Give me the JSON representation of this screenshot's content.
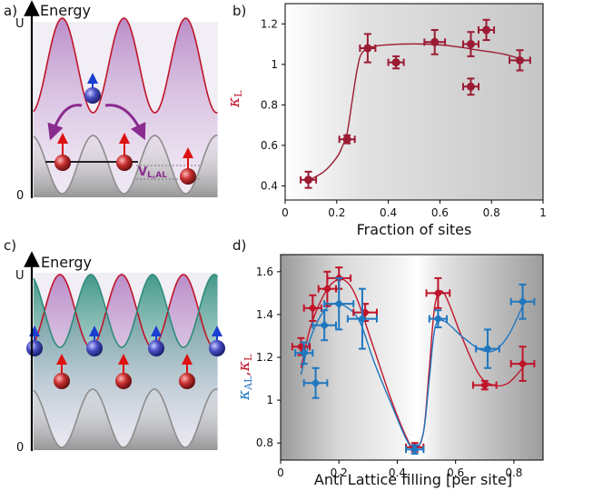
{
  "panels": {
    "a": {
      "tag": "a)",
      "title": "Energy",
      "u_label": "U",
      "zero_label": "0",
      "v_label": "V",
      "v_sub": "L,AL"
    },
    "b": {
      "tag": "b)"
    },
    "c": {
      "tag": "c)",
      "title": "Energy",
      "u_label": "U",
      "zero_label": "0"
    },
    "d": {
      "tag": "d)"
    }
  },
  "colors": {
    "red": "#c0142a",
    "blue": "#1f77c0",
    "darkred": "#9b1b33",
    "purple": "#8a2b8f",
    "teal": "#2e8c7a",
    "gray": "#9a9a9a"
  },
  "chart_data": [
    {
      "id": "b",
      "type": "scatter",
      "title": "",
      "xlabel": "Fraction of sites",
      "ylabel": "κ",
      "ylabel_sub": "L",
      "xlim": [
        0,
        1
      ],
      "ylim": [
        0.33,
        1.3
      ],
      "xticks": [
        "0",
        "0.2",
        "0.4",
        "0.6",
        "0.8",
        "1"
      ],
      "yticks": [
        "0.4",
        "0.6",
        "0.8",
        "1",
        "1.2"
      ],
      "series": [
        {
          "name": "κL",
          "color": "#9b1b33",
          "points": [
            {
              "x": 0.09,
              "y": 0.43,
              "xerr": 0.03,
              "yerr": 0.04
            },
            {
              "x": 0.24,
              "y": 0.63,
              "xerr": 0.03,
              "yerr": 0.02
            },
            {
              "x": 0.32,
              "y": 1.08,
              "xerr": 0.03,
              "yerr": 0.07
            },
            {
              "x": 0.43,
              "y": 1.01,
              "xerr": 0.03,
              "yerr": 0.03
            },
            {
              "x": 0.58,
              "y": 1.11,
              "xerr": 0.04,
              "yerr": 0.06
            },
            {
              "x": 0.72,
              "y": 1.1,
              "xerr": 0.03,
              "yerr": 0.06
            },
            {
              "x": 0.78,
              "y": 1.17,
              "xerr": 0.03,
              "yerr": 0.05
            },
            {
              "x": 0.72,
              "y": 0.89,
              "xerr": 0.03,
              "yerr": 0.04
            },
            {
              "x": 0.91,
              "y": 1.02,
              "xerr": 0.04,
              "yerr": 0.05
            }
          ],
          "fit": [
            [
              0.08,
              0.42
            ],
            [
              0.15,
              0.47
            ],
            [
              0.2,
              0.54
            ],
            [
              0.22,
              0.59
            ],
            [
              0.24,
              0.66
            ],
            [
              0.26,
              0.82
            ],
            [
              0.28,
              0.98
            ],
            [
              0.3,
              1.06
            ],
            [
              0.35,
              1.09
            ],
            [
              0.45,
              1.1
            ],
            [
              0.55,
              1.1
            ],
            [
              0.65,
              1.09
            ],
            [
              0.75,
              1.07
            ],
            [
              0.85,
              1.05
            ],
            [
              0.93,
              1.02
            ]
          ]
        }
      ]
    },
    {
      "id": "d",
      "type": "scatter",
      "title": "",
      "xlabel": "Anti Lattice filling [per site]",
      "ylabel": "κ",
      "ylabel_sub": "AL",
      "ylabel2": "κ",
      "ylabel2_sub": "L",
      "xlim": [
        0,
        0.9
      ],
      "ylim": [
        0.72,
        1.68
      ],
      "xticks": [
        "0",
        "0.2",
        "0.4",
        "0.6",
        "0.8"
      ],
      "yticks": [
        "0.8",
        "1",
        "1.2",
        "1.4",
        "1.6"
      ],
      "series": [
        {
          "name": "κL",
          "color": "#c0142a",
          "points": [
            {
              "x": 0.07,
              "y": 1.25,
              "xerr": 0.03,
              "yerr": 0.04
            },
            {
              "x": 0.11,
              "y": 1.43,
              "xerr": 0.03,
              "yerr": 0.06
            },
            {
              "x": 0.16,
              "y": 1.52,
              "xerr": 0.03,
              "yerr": 0.08
            },
            {
              "x": 0.2,
              "y": 1.57,
              "xerr": 0.04,
              "yerr": 0.05
            },
            {
              "x": 0.29,
              "y": 1.41,
              "xerr": 0.04,
              "yerr": 0.04
            },
            {
              "x": 0.46,
              "y": 0.78,
              "xerr": 0.03,
              "yerr": 0.02
            },
            {
              "x": 0.54,
              "y": 1.5,
              "xerr": 0.04,
              "yerr": 0.07
            },
            {
              "x": 0.7,
              "y": 1.07,
              "xerr": 0.04,
              "yerr": 0.02
            },
            {
              "x": 0.83,
              "y": 1.17,
              "xerr": 0.04,
              "yerr": 0.08
            }
          ],
          "fit": [
            [
              0.07,
              1.15
            ],
            [
              0.1,
              1.33
            ],
            [
              0.14,
              1.47
            ],
            [
              0.18,
              1.55
            ],
            [
              0.22,
              1.56
            ],
            [
              0.26,
              1.48
            ],
            [
              0.32,
              1.24
            ],
            [
              0.38,
              1.0
            ],
            [
              0.43,
              0.83
            ],
            [
              0.46,
              0.77
            ],
            [
              0.49,
              0.85
            ],
            [
              0.51,
              1.15
            ],
            [
              0.53,
              1.45
            ],
            [
              0.56,
              1.5
            ],
            [
              0.62,
              1.3
            ],
            [
              0.68,
              1.12
            ],
            [
              0.73,
              1.07
            ],
            [
              0.78,
              1.08
            ],
            [
              0.83,
              1.15
            ]
          ]
        },
        {
          "name": "κAL",
          "color": "#1f77c0",
          "points": [
            {
              "x": 0.08,
              "y": 1.22,
              "xerr": 0.03,
              "yerr": 0.05
            },
            {
              "x": 0.12,
              "y": 1.08,
              "xerr": 0.04,
              "yerr": 0.07
            },
            {
              "x": 0.15,
              "y": 1.35,
              "xerr": 0.04,
              "yerr": 0.07
            },
            {
              "x": 0.2,
              "y": 1.45,
              "xerr": 0.05,
              "yerr": 0.12
            },
            {
              "x": 0.28,
              "y": 1.38,
              "xerr": 0.05,
              "yerr": 0.14
            },
            {
              "x": 0.46,
              "y": 0.77,
              "xerr": 0.03,
              "yerr": 0.02
            },
            {
              "x": 0.54,
              "y": 1.38,
              "xerr": 0.03,
              "yerr": 0.04
            },
            {
              "x": 0.71,
              "y": 1.24,
              "xerr": 0.04,
              "yerr": 0.09
            },
            {
              "x": 0.83,
              "y": 1.46,
              "xerr": 0.04,
              "yerr": 0.08
            }
          ],
          "fit": [
            [
              0.07,
              1.12
            ],
            [
              0.1,
              1.28
            ],
            [
              0.14,
              1.4
            ],
            [
              0.18,
              1.45
            ],
            [
              0.22,
              1.44
            ],
            [
              0.27,
              1.37
            ],
            [
              0.32,
              1.18
            ],
            [
              0.38,
              0.98
            ],
            [
              0.43,
              0.82
            ],
            [
              0.46,
              0.77
            ],
            [
              0.49,
              0.85
            ],
            [
              0.51,
              1.1
            ],
            [
              0.53,
              1.34
            ],
            [
              0.56,
              1.37
            ],
            [
              0.62,
              1.3
            ],
            [
              0.68,
              1.24
            ],
            [
              0.73,
              1.23
            ],
            [
              0.78,
              1.3
            ],
            [
              0.83,
              1.44
            ]
          ]
        }
      ]
    }
  ]
}
